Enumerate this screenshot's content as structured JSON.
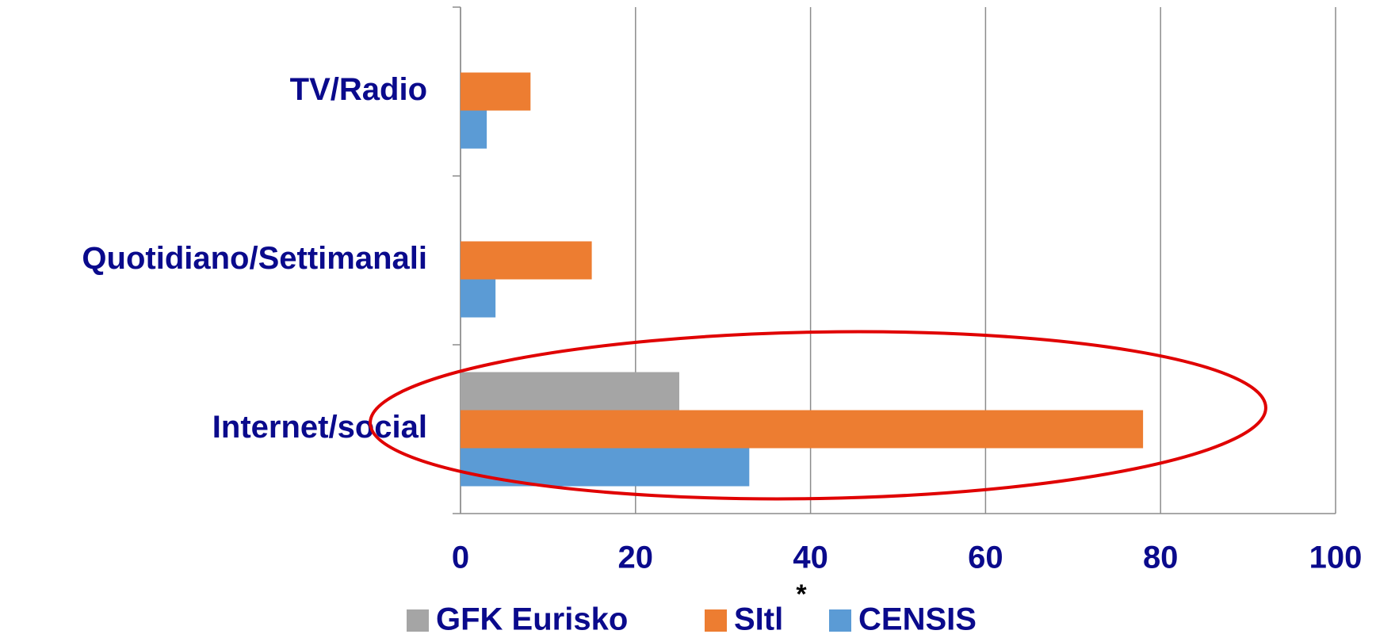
{
  "chart_data": {
    "type": "bar",
    "orientation": "horizontal",
    "categories": [
      "TV/Radio",
      "Quotidiano/Settimanali",
      "Internet/social"
    ],
    "series": [
      {
        "name": "GFK Eurisko",
        "color": "#a5a5a5",
        "values": [
          null,
          null,
          25
        ]
      },
      {
        "name": "SItl",
        "color": "#ed7d31",
        "values": [
          8,
          15,
          78
        ]
      },
      {
        "name": "CENSIS",
        "color": "#5b9bd5",
        "values": [
          3,
          4,
          33
        ]
      }
    ],
    "series_note": "*",
    "xlim": [
      0,
      100
    ],
    "xticks": [
      0,
      20,
      40,
      60,
      80,
      100
    ],
    "grid": true,
    "highlight_color": "#e00000"
  }
}
